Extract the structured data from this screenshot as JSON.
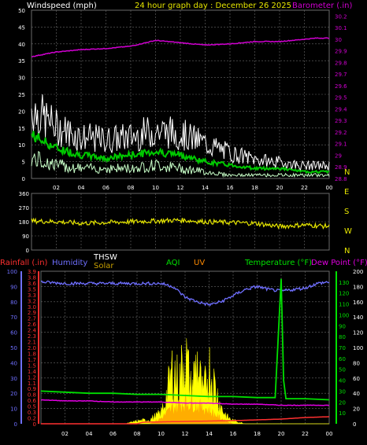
{
  "header": {
    "left_label": "Windspeed (mph)",
    "center_label": "24 hour graph day : December 26 2025",
    "right_label": "Barometer (.in)"
  },
  "bottom_header": {
    "rainfall": "Rainfall (.in)",
    "humidity": "Humidity",
    "thsw": "THSW",
    "solar": "Solar",
    "aqi": "AQI",
    "uv": "UV",
    "temperature": "Temperature (°F)",
    "dewpoint": "Dew Point (°F)"
  },
  "colors": {
    "background": "#000000",
    "grid": "#6a6a6a",
    "wind_gust": "#ffffff",
    "wind_avg": "#00c800",
    "wind_light": "#c8ffc8",
    "barometer": "#d000d0",
    "direction": "#e6e600",
    "rain": "#ff3030",
    "humidity": "#6f6fff",
    "solar": "#ffff00",
    "uv": "#ff8a00",
    "temperature": "#00e000",
    "dewpoint": "#e000e0",
    "left_axis_wind": "#ffffff",
    "right_axis_baro": "#d000d0"
  },
  "chart_data": [
    {
      "type": "line",
      "title": "24 hour graph day : December 26 2025",
      "x_ticks": [
        "02",
        "04",
        "06",
        "08",
        "10",
        "12",
        "14",
        "16",
        "18",
        "20",
        "22",
        "00"
      ],
      "y_left_label": "Windspeed (mph)",
      "y_left_ticks": [
        0,
        5,
        10,
        15,
        20,
        25,
        30,
        35,
        40,
        45,
        50
      ],
      "y_left_range": [
        0,
        50
      ],
      "y_right_label": "Barometer (.in)",
      "y_right_ticks": [
        "28.8",
        "28.9",
        "29",
        "29.1",
        "29.2",
        "29.3",
        "29.4",
        "29.5",
        "29.6",
        "29.7",
        "29.8",
        "29.9",
        "30",
        "30.1",
        "30.2"
      ],
      "y_right_range": [
        28.8,
        30.25
      ],
      "series": [
        {
          "name": "Barometer",
          "axis": "right",
          "x": [
            0,
            2,
            4,
            6,
            8,
            10,
            12,
            14,
            16,
            18,
            20,
            22,
            23,
            24
          ],
          "values": [
            29.85,
            29.89,
            29.91,
            29.92,
            29.94,
            29.99,
            29.97,
            29.95,
            29.96,
            29.98,
            29.98,
            30.0,
            30.01,
            30.01
          ]
        },
        {
          "name": "Wind gust",
          "axis": "left",
          "x": [
            0,
            2,
            4,
            6,
            8,
            10,
            12,
            14,
            16,
            18,
            20,
            22,
            24
          ],
          "values": [
            22,
            16,
            13,
            12,
            13,
            15,
            14,
            11,
            8,
            6,
            5,
            4,
            4
          ]
        },
        {
          "name": "Wind avg",
          "axis": "left",
          "x": [
            0,
            2,
            4,
            6,
            8,
            10,
            12,
            14,
            16,
            18,
            20,
            22,
            24
          ],
          "values": [
            13,
            9,
            7,
            6,
            7,
            8,
            7,
            5,
            4,
            3,
            3,
            2,
            2
          ]
        },
        {
          "name": "Wind low",
          "axis": "left",
          "x": [
            0,
            2,
            4,
            6,
            8,
            10,
            12,
            14,
            16,
            18,
            20,
            22,
            24
          ],
          "values": [
            6,
            4,
            3,
            3,
            3,
            4,
            3,
            2,
            1,
            1,
            1,
            1,
            1
          ]
        }
      ]
    },
    {
      "type": "line",
      "x_ticks": [
        "02",
        "04",
        "06",
        "08",
        "10",
        "12",
        "14",
        "16",
        "18",
        "20",
        "22",
        "00"
      ],
      "y_left_ticks": [
        0,
        90,
        180,
        270,
        360
      ],
      "y_left_range": [
        0,
        360
      ],
      "y_right_labels": [
        "N",
        "W",
        "S",
        "E",
        "N"
      ],
      "series": [
        {
          "name": "Wind direction",
          "x": [
            0,
            2,
            4,
            6,
            8,
            10,
            12,
            14,
            16,
            18,
            20,
            22,
            24
          ],
          "values": [
            185,
            180,
            170,
            175,
            180,
            185,
            190,
            180,
            175,
            170,
            150,
            160,
            150
          ]
        }
      ]
    },
    {
      "type": "line",
      "x_ticks": [
        "02",
        "04",
        "06",
        "08",
        "10",
        "12",
        "14",
        "16",
        "18",
        "20",
        "22",
        "00"
      ],
      "y_humidity_ticks": [
        0,
        10,
        20,
        30,
        40,
        50,
        60,
        70,
        80,
        90,
        100
      ],
      "y_rain_ticks": [
        "0",
        "0.2",
        "0.3",
        "0.5",
        "0.6",
        "0.8",
        "0.9",
        "1.1",
        "1.2",
        "1.4",
        "1.5",
        "1.7",
        "1.8",
        "2.0",
        "2.1",
        "2.3",
        "2.4",
        "2.6",
        "2.7",
        "2.9",
        "3.0",
        "3.2",
        "3.3",
        "3.5",
        "3.6",
        "3.8",
        "3.9"
      ],
      "y_temp_ticks": [
        10,
        20,
        30,
        40,
        50,
        60,
        70,
        80,
        90,
        100,
        110,
        120,
        130
      ],
      "y_solar_ticks": [
        0,
        20,
        40,
        60,
        80,
        100,
        120,
        140,
        160,
        180,
        200
      ],
      "series": [
        {
          "name": "Humidity",
          "x": [
            0,
            2,
            4,
            6,
            8,
            10,
            11,
            12,
            13,
            14,
            15,
            16,
            17,
            18,
            19,
            20,
            21,
            22,
            23,
            24
          ],
          "values": [
            93,
            92,
            92,
            92,
            92,
            92,
            90,
            83,
            80,
            78,
            80,
            84,
            88,
            90,
            88,
            87,
            88,
            89,
            92,
            93
          ]
        },
        {
          "name": "Temperature",
          "x": [
            0,
            2,
            4,
            6,
            8,
            10,
            12,
            14,
            16,
            18,
            19.5,
            20,
            20.2,
            20.4,
            21,
            22,
            24
          ],
          "values": [
            30,
            29,
            28,
            28,
            27,
            27,
            26,
            25,
            25,
            24,
            24,
            133,
            40,
            23,
            23,
            23,
            22
          ]
        },
        {
          "name": "Dew Point",
          "x": [
            0,
            2,
            4,
            6,
            8,
            10,
            12,
            14,
            16,
            18,
            20,
            22,
            24
          ],
          "values": [
            22,
            21,
            21,
            20,
            20,
            20,
            19,
            19,
            18,
            18,
            17,
            17,
            17
          ]
        },
        {
          "name": "Rainfall",
          "x": [
            0,
            8,
            8.5,
            12,
            16,
            20,
            22,
            24
          ],
          "values": [
            0,
            0,
            0.04,
            0.06,
            0.08,
            0.12,
            0.16,
            0.18
          ]
        },
        {
          "name": "Solar",
          "x": [
            0,
            7,
            8,
            9,
            10,
            10.5,
            11,
            11.5,
            12,
            12.5,
            13,
            13.5,
            14,
            14.5,
            15,
            15.5,
            16,
            17,
            24
          ],
          "values": [
            0,
            0,
            4,
            6,
            15,
            45,
            85,
            60,
            110,
            50,
            95,
            40,
            85,
            55,
            25,
            10,
            5,
            0,
            0
          ]
        },
        {
          "name": "UV",
          "x": [
            0,
            9,
            10,
            11,
            12,
            13,
            14,
            15,
            16,
            24
          ],
          "values": [
            0,
            0,
            2,
            6,
            8,
            7,
            5,
            2,
            0,
            0
          ]
        }
      ]
    }
  ]
}
